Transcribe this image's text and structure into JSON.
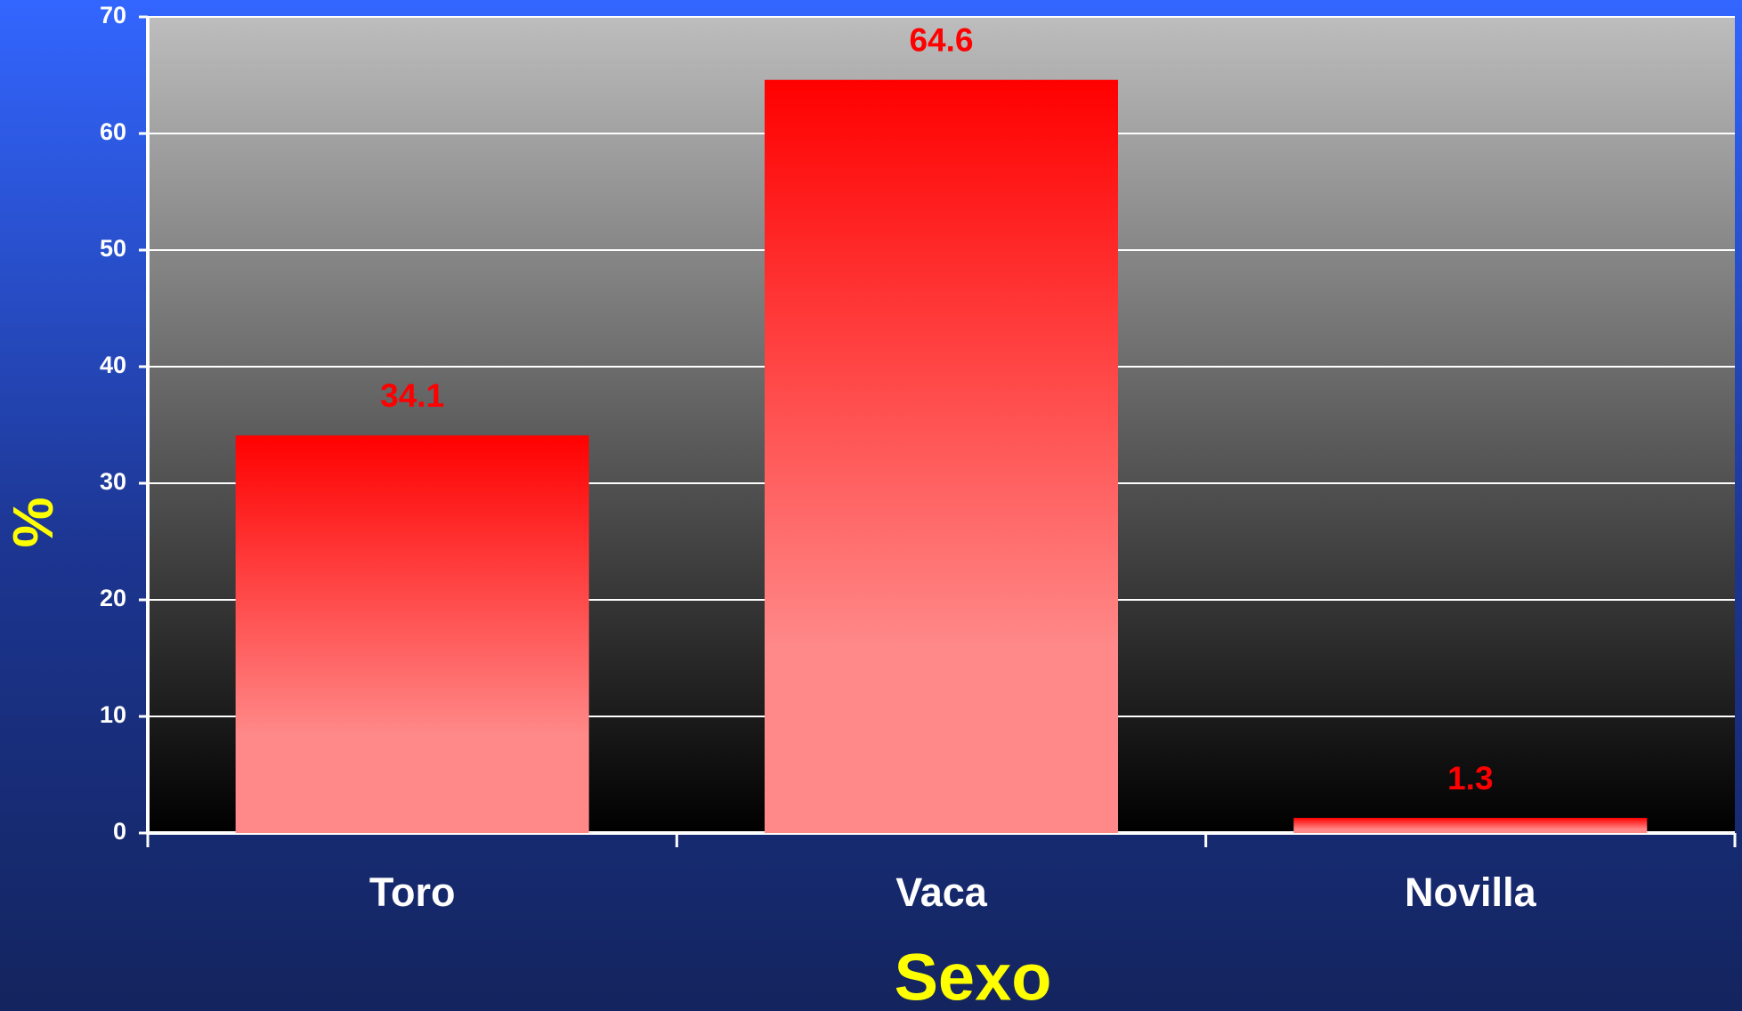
{
  "chart_data": {
    "type": "bar",
    "x_label": "Sexo",
    "y_label": "%",
    "categories": [
      "Toro",
      "Vaca",
      "Novilla"
    ],
    "values": [
      34.1,
      64.6,
      1.3
    ],
    "color": "#ff0000",
    "ylim": [
      0,
      70
    ],
    "yticks": [
      0,
      10,
      20,
      30,
      40,
      50,
      60,
      70
    ],
    "grid": true,
    "data_labels": true
  }
}
